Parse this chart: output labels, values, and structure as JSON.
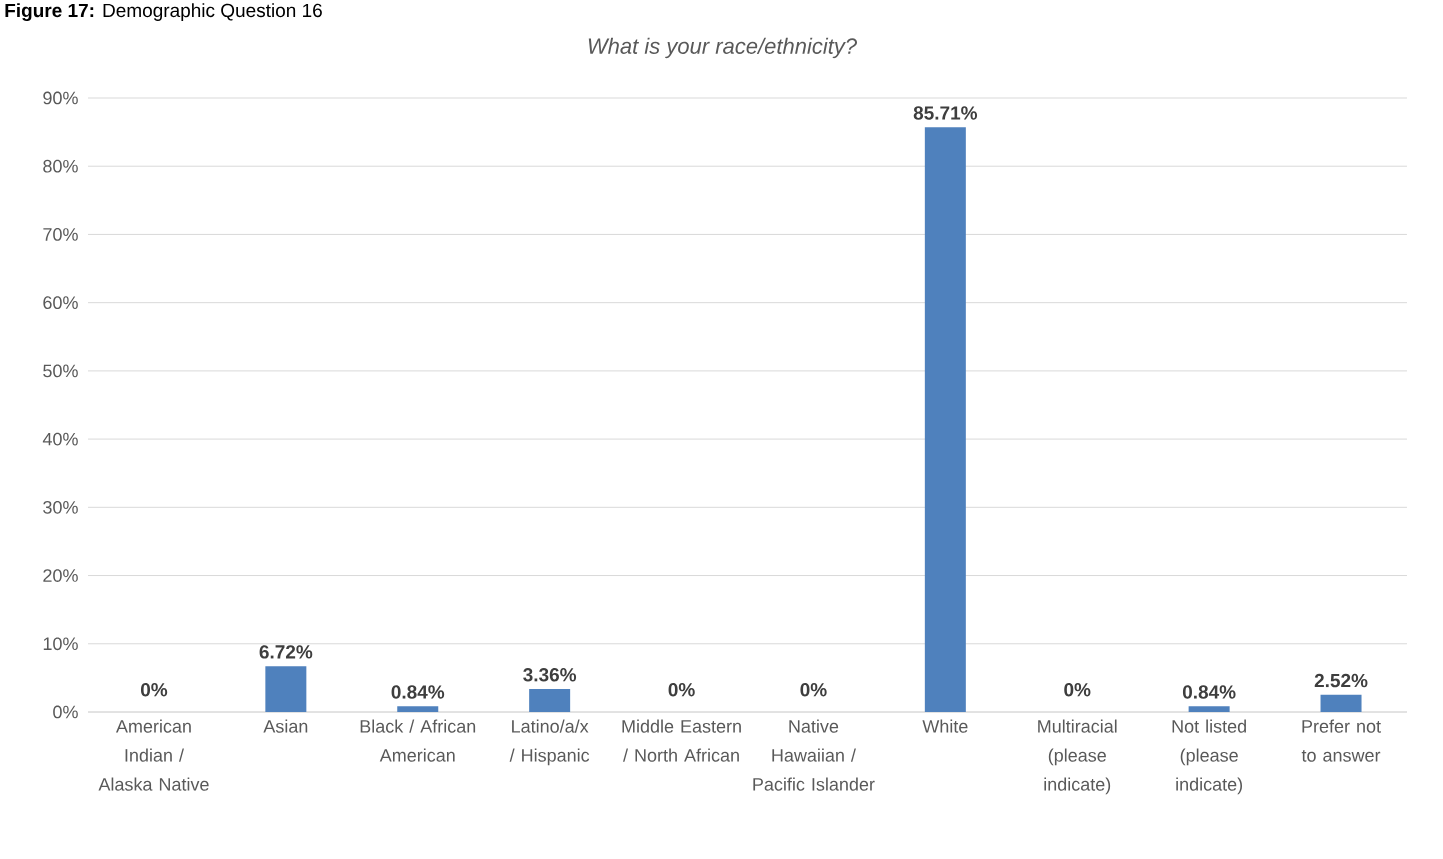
{
  "chart_data": {
    "type": "bar",
    "title": "What is your race/ethnicity?",
    "annotations": [
      "**Figure 17:** Demographic Question 16"
    ],
    "categories": [
      "American Indian / Alaska Native",
      "Asian",
      "Black / African American",
      "Latino/a/x / Hispanic",
      "Middle Eastern / North African",
      "Native Hawaiian / Pacific Islander",
      "White",
      "Multiracial (please indicate)",
      "Not listed (please indicate)",
      "Prefer not to answer"
    ],
    "values": [
      0,
      6.72,
      0.84,
      3.36,
      0,
      0,
      85.71,
      0,
      0.84,
      2.52
    ],
    "value_labels": [
      "0%",
      "6.72%",
      "0.84%",
      "3.36%",
      "0%",
      "0%",
      "85.71%",
      "0%",
      "0.84%",
      "2.52%"
    ],
    "color": "#4f81bd",
    "ylim": [
      0,
      90
    ],
    "yticks": [
      {
        "value": 0,
        "label": "0%"
      },
      {
        "value": 10,
        "label": "10%"
      },
      {
        "value": 20,
        "label": "20%"
      },
      {
        "value": 30,
        "label": "30%"
      },
      {
        "value": 40,
        "label": "40%"
      },
      {
        "value": 50,
        "label": "50%"
      },
      {
        "value": 60,
        "label": "60%"
      },
      {
        "value": 70,
        "label": "70%"
      },
      {
        "value": 80,
        "label": "80%"
      },
      {
        "value": 90,
        "label": "90%"
      }
    ],
    "grid": "y"
  }
}
